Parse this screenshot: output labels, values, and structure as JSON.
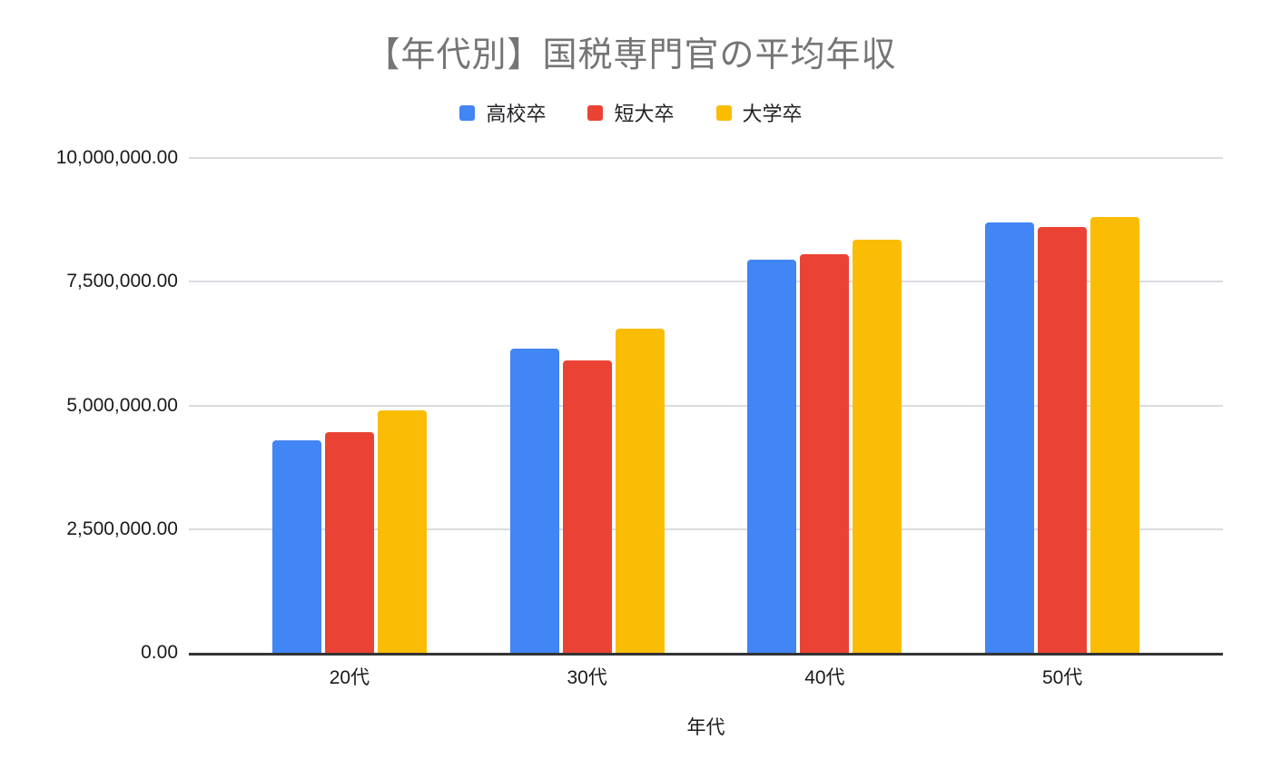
{
  "title": "【年代別】国税専門官の平均年収",
  "legend": [
    {
      "label": "高校卒",
      "color": "#4285F4"
    },
    {
      "label": "短大卒",
      "color": "#EA4335"
    },
    {
      "label": "大学卒",
      "color": "#FBBC04"
    }
  ],
  "colors": {
    "title_text": "#757575",
    "axis_text": "#1a1a1a",
    "gridline": "#dadce0",
    "axis_line": "#333333",
    "background": "#ffffff"
  },
  "chart_data": {
    "type": "bar",
    "title": "【年代別】国税専門官の平均年収",
    "categories": [
      "20代",
      "30代",
      "40代",
      "50代"
    ],
    "series": [
      {
        "name": "高校卒",
        "color": "#4285F4",
        "values": [
          4300000,
          6150000,
          7950000,
          8700000
        ]
      },
      {
        "name": "短大卒",
        "color": "#EA4335",
        "values": [
          4450000,
          5900000,
          8050000,
          8600000
        ]
      },
      {
        "name": "大学卒",
        "color": "#FBBC04",
        "values": [
          4900000,
          6550000,
          8350000,
          8800000
        ]
      }
    ],
    "xlabel": "年代",
    "ylabel": "",
    "ylim": [
      0,
      10000000
    ],
    "y_tick_labels_top_to_bottom": [
      "10,000,000.00",
      "7,500,000.00",
      "5,000,000.00",
      "2,500,000.00",
      "0.00"
    ],
    "grid": true,
    "legend_position": "top"
  }
}
